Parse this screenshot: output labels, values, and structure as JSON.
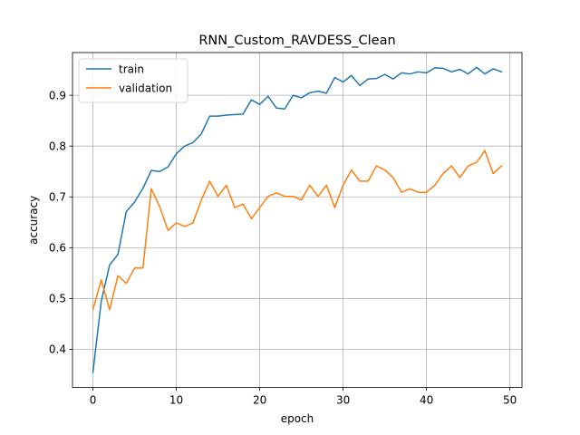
{
  "chart_data": {
    "type": "line",
    "title": "RNN_Custom_RAVDESS_Clean",
    "xlabel": "epoch",
    "ylabel": "accuracy",
    "xlim": [
      -2.45,
      51.45
    ],
    "ylim": [
      0.325,
      0.984
    ],
    "xticks": [
      0,
      10,
      20,
      30,
      40,
      50
    ],
    "yticks": [
      0.4,
      0.5,
      0.6,
      0.7,
      0.8,
      0.9
    ],
    "grid": true,
    "legend_position": "upper-left",
    "x": [
      0,
      1,
      2,
      3,
      4,
      5,
      6,
      7,
      8,
      9,
      10,
      11,
      12,
      13,
      14,
      15,
      16,
      17,
      18,
      19,
      20,
      21,
      22,
      23,
      24,
      25,
      26,
      27,
      28,
      29,
      30,
      31,
      32,
      33,
      34,
      35,
      36,
      37,
      38,
      39,
      40,
      41,
      42,
      43,
      44,
      45,
      46,
      47,
      48,
      49
    ],
    "series": [
      {
        "name": "train",
        "color": "#1f77b4",
        "values": [
          0.355,
          0.495,
          0.566,
          0.587,
          0.671,
          0.69,
          0.717,
          0.752,
          0.75,
          0.759,
          0.785,
          0.8,
          0.807,
          0.824,
          0.859,
          0.859,
          0.861,
          0.862,
          0.863,
          0.891,
          0.882,
          0.898,
          0.875,
          0.873,
          0.9,
          0.895,
          0.905,
          0.908,
          0.904,
          0.935,
          0.926,
          0.939,
          0.919,
          0.932,
          0.933,
          0.941,
          0.932,
          0.944,
          0.942,
          0.946,
          0.944,
          0.954,
          0.953,
          0.946,
          0.951,
          0.942,
          0.955,
          0.942,
          0.952,
          0.946
        ]
      },
      {
        "name": "validation",
        "color": "#ff7f0e",
        "values": [
          0.478,
          0.537,
          0.478,
          0.545,
          0.53,
          0.56,
          0.56,
          0.716,
          0.681,
          0.634,
          0.649,
          0.642,
          0.649,
          0.694,
          0.731,
          0.701,
          0.723,
          0.679,
          0.686,
          0.657,
          0.679,
          0.701,
          0.708,
          0.701,
          0.701,
          0.694,
          0.723,
          0.701,
          0.723,
          0.679,
          0.723,
          0.753,
          0.731,
          0.731,
          0.761,
          0.753,
          0.738,
          0.709,
          0.716,
          0.709,
          0.709,
          0.723,
          0.746,
          0.761,
          0.738,
          0.761,
          0.768,
          0.791,
          0.746,
          0.761
        ]
      }
    ]
  }
}
